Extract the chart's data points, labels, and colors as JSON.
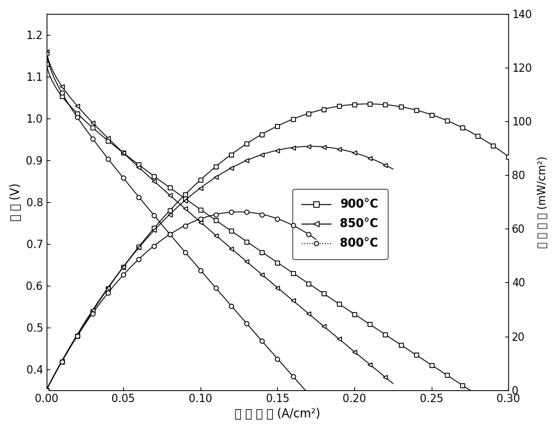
{
  "xlabel": "电 流 密 度 (A/cm²)",
  "ylabel_left": "电 压 (V)",
  "ylabel_right": "功 率 密 度 (mW/cm²)",
  "xlim": [
    0.0,
    0.3
  ],
  "ylim_left": [
    0.35,
    1.25
  ],
  "ylim_right": [
    0,
    140
  ],
  "xticks": [
    0.0,
    0.05,
    0.1,
    0.15,
    0.2,
    0.25,
    0.3
  ],
  "yticks_left": [
    0.4,
    0.5,
    0.6,
    0.7,
    0.8,
    0.9,
    1.0,
    1.1,
    1.2
  ],
  "yticks_right": [
    0,
    20,
    40,
    60,
    80,
    100,
    120,
    140
  ],
  "series": [
    {
      "label": "900°C",
      "temperature": 900,
      "marker": "s",
      "V0": 1.13,
      "slope": 2.3,
      "i_max_v": 0.305,
      "power_peak": 135.0,
      "i_peak_p": 0.215,
      "power_shape": 0.9
    },
    {
      "label": "850°C",
      "temperature": 850,
      "marker": "<",
      "V0": 1.16,
      "slope": 2.9,
      "i_max_v": 0.225,
      "power_peak": 115.0,
      "i_peak_p": 0.175,
      "power_shape": 1.1
    },
    {
      "label": "800°C",
      "temperature": 800,
      "marker": "o",
      "V0": 1.155,
      "slope": 4.0,
      "i_max_v": 0.175,
      "power_peak": 92.0,
      "i_peak_p": 0.13,
      "power_shape": 1.4
    }
  ],
  "legend_labels": [
    "900°C",
    "850°C",
    "800°C"
  ],
  "legend_markers": [
    "s",
    "<",
    "o"
  ],
  "legend_linestyles": [
    "-",
    "-",
    ":"
  ],
  "background_color": "#ffffff"
}
